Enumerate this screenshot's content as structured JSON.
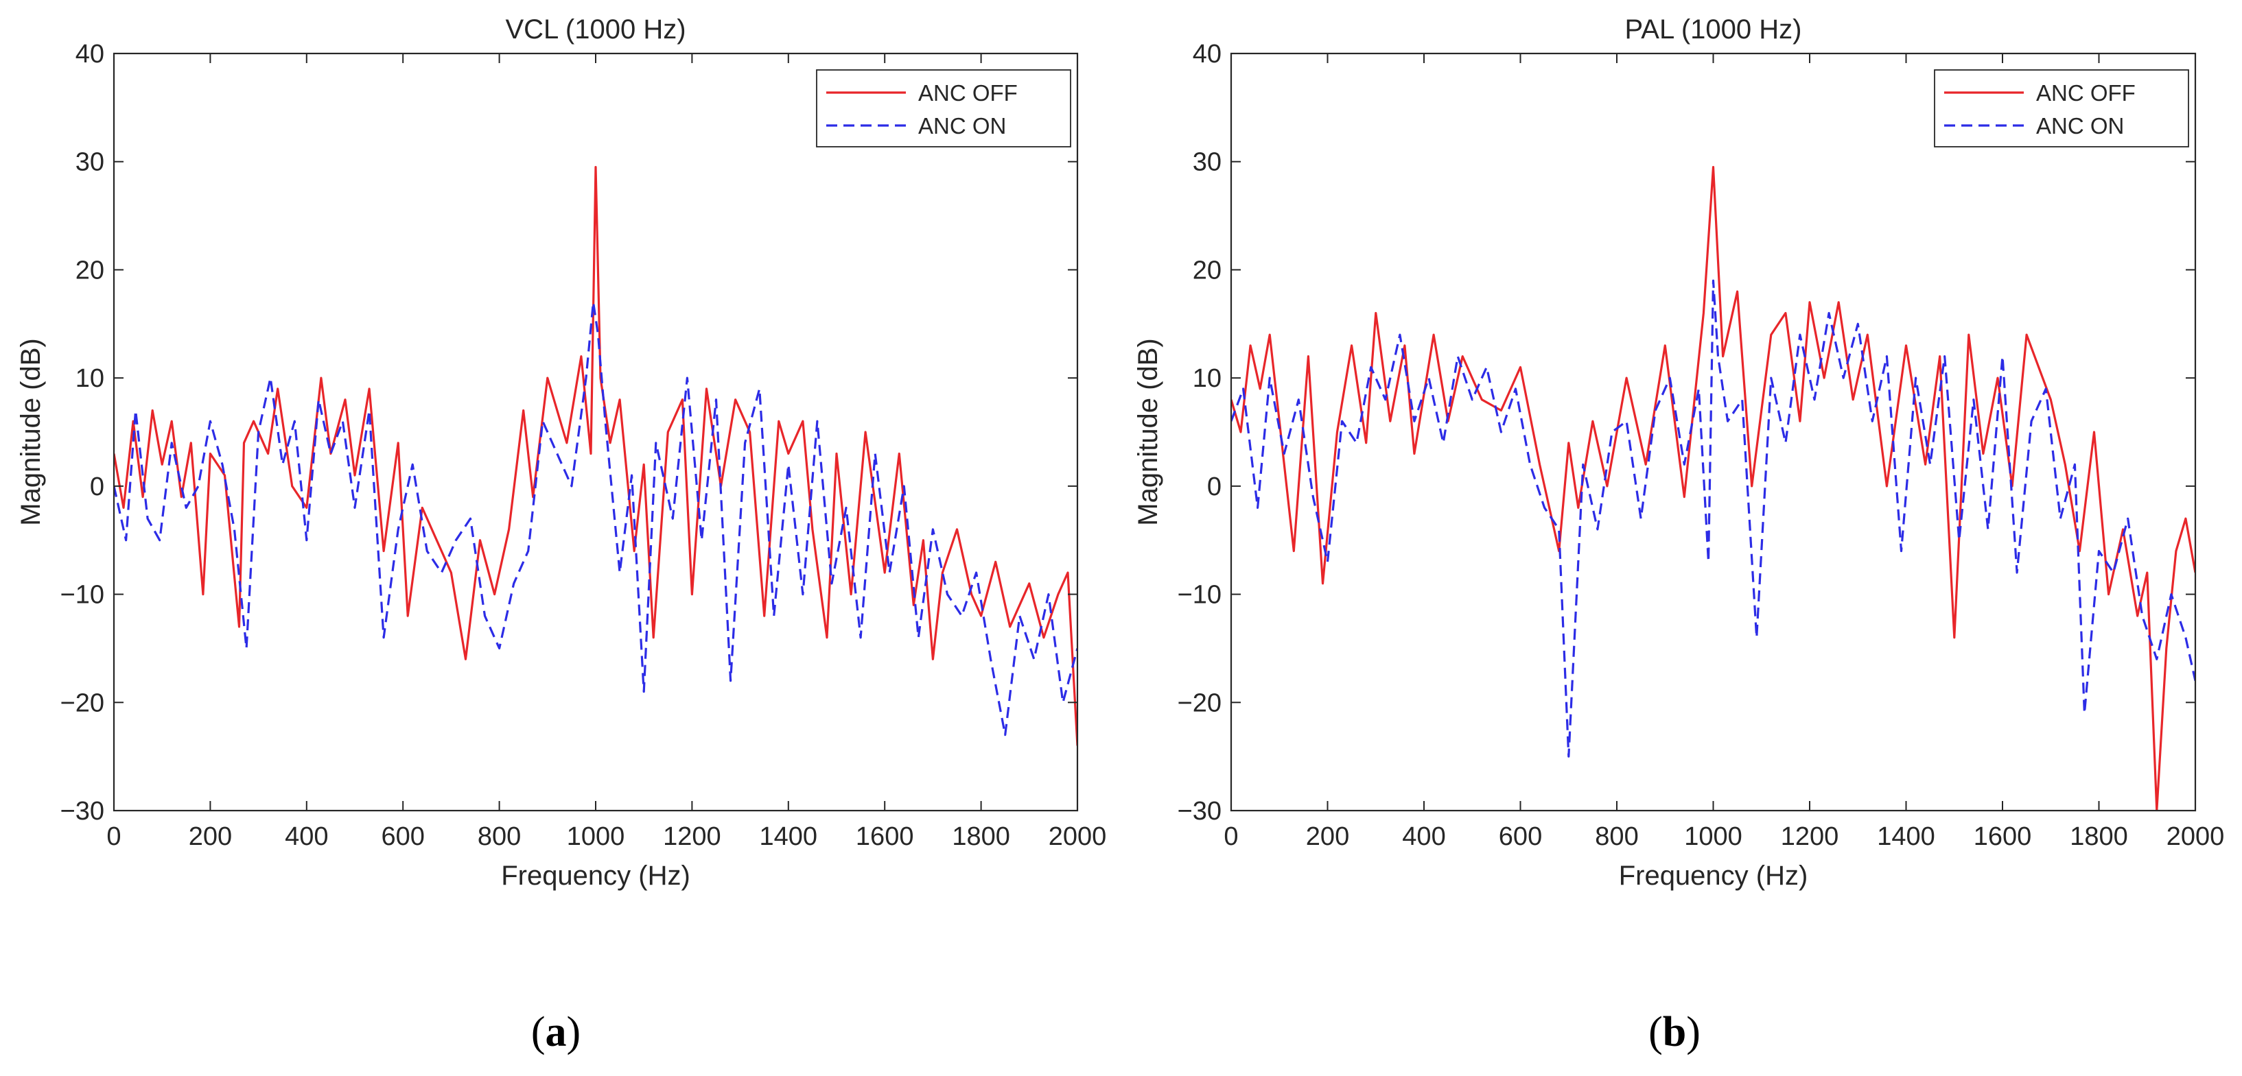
{
  "chart_data": [
    {
      "id": "a",
      "type": "line",
      "title": "VCL (1000 Hz)",
      "xlabel": "Frequency (Hz)",
      "ylabel": "Magnitude (dB)",
      "xlim": [
        0,
        2000
      ],
      "ylim": [
        -30,
        40
      ],
      "xticks": [
        0,
        200,
        400,
        600,
        800,
        1000,
        1200,
        1400,
        1600,
        1800,
        2000
      ],
      "yticks": [
        -30,
        -20,
        -10,
        0,
        10,
        20,
        30,
        40
      ],
      "xtick_labels": [
        "0",
        "200",
        "400",
        "600",
        "800",
        "1000",
        "1200",
        "1400",
        "1600",
        "1800",
        "2000"
      ],
      "ytick_labels": [
        "−30",
        "−20",
        "−10",
        "0",
        "10",
        "20",
        "30",
        "40"
      ],
      "grid": false,
      "legend_position": "top-right",
      "caption": {
        "open": "(",
        "letter": "a",
        "close": ")"
      },
      "series": [
        {
          "name": "ANC OFF",
          "color": "#e8262a",
          "style": "solid",
          "x": [
            0,
            20,
            40,
            60,
            80,
            100,
            120,
            140,
            160,
            185,
            200,
            230,
            260,
            270,
            290,
            320,
            340,
            370,
            400,
            430,
            450,
            480,
            500,
            530,
            560,
            590,
            610,
            640,
            680,
            700,
            730,
            760,
            790,
            820,
            850,
            870,
            900,
            940,
            970,
            990,
            1000,
            1010,
            1030,
            1050,
            1080,
            1100,
            1120,
            1150,
            1180,
            1200,
            1230,
            1260,
            1290,
            1320,
            1350,
            1380,
            1400,
            1430,
            1450,
            1480,
            1500,
            1530,
            1560,
            1600,
            1630,
            1660,
            1680,
            1700,
            1720,
            1750,
            1780,
            1800,
            1830,
            1860,
            1900,
            1930,
            1960,
            1980,
            2000
          ],
          "y": [
            3,
            -2,
            6,
            -1,
            7,
            2,
            6,
            -1,
            4,
            -10,
            3,
            1,
            -13,
            4,
            6,
            3,
            9,
            0,
            -2,
            10,
            3,
            8,
            1,
            9,
            -6,
            4,
            -12,
            -2,
            -6,
            -8,
            -16,
            -5,
            -10,
            -4,
            7,
            -1,
            10,
            4,
            12,
            3,
            29.5,
            10,
            4,
            8,
            -6,
            2,
            -14,
            5,
            8,
            -10,
            9,
            0,
            8,
            5,
            -12,
            6,
            3,
            6,
            -4,
            -14,
            3,
            -10,
            5,
            -8,
            3,
            -11,
            -5,
            -16,
            -8,
            -4,
            -10,
            -12,
            -7,
            -13,
            -9,
            -14,
            -10,
            -8,
            -24
          ]
        },
        {
          "name": "ANC ON",
          "color": "#2c2ce6",
          "style": "dashed",
          "x": [
            0,
            25,
            45,
            70,
            95,
            120,
            150,
            175,
            200,
            225,
            250,
            275,
            300,
            325,
            350,
            375,
            400,
            425,
            450,
            475,
            500,
            530,
            560,
            590,
            620,
            650,
            680,
            710,
            740,
            770,
            800,
            830,
            860,
            890,
            920,
            950,
            980,
            995,
            1005,
            1020,
            1050,
            1075,
            1100,
            1125,
            1160,
            1190,
            1220,
            1250,
            1280,
            1310,
            1340,
            1370,
            1400,
            1430,
            1460,
            1490,
            1520,
            1550,
            1580,
            1610,
            1640,
            1670,
            1700,
            1730,
            1760,
            1790,
            1820,
            1850,
            1880,
            1910,
            1940,
            1970,
            2000
          ],
          "y": [
            0,
            -5,
            7,
            -3,
            -5,
            4,
            -2,
            0,
            6,
            2,
            -4,
            -15,
            5,
            10,
            2,
            6,
            -5,
            8,
            3,
            6,
            -2,
            7,
            -14,
            -4,
            2,
            -6,
            -8,
            -5,
            -3,
            -12,
            -15,
            -9,
            -6,
            6,
            3,
            0,
            10,
            17,
            14,
            6,
            -8,
            1,
            -19,
            4,
            -3,
            10,
            -5,
            8,
            -18,
            4,
            9,
            -12,
            2,
            -10,
            6,
            -9,
            -2,
            -14,
            3,
            -8,
            0,
            -14,
            -4,
            -10,
            -12,
            -8,
            -16,
            -23,
            -12,
            -16,
            -10,
            -20,
            -15
          ]
        }
      ]
    },
    {
      "id": "b",
      "type": "line",
      "title": "PAL (1000 Hz)",
      "xlabel": "Frequency (Hz)",
      "ylabel": "Magnitude (dB)",
      "xlim": [
        0,
        2000
      ],
      "ylim": [
        -30,
        40
      ],
      "xticks": [
        0,
        200,
        400,
        600,
        800,
        1000,
        1200,
        1400,
        1600,
        1800,
        2000
      ],
      "yticks": [
        -30,
        -20,
        -10,
        0,
        10,
        20,
        30,
        40
      ],
      "xtick_labels": [
        "0",
        "200",
        "400",
        "600",
        "800",
        "1000",
        "1200",
        "1400",
        "1600",
        "1800",
        "2000"
      ],
      "ytick_labels": [
        "−30",
        "−20",
        "−10",
        "0",
        "10",
        "20",
        "30",
        "40"
      ],
      "grid": false,
      "legend_position": "top-right",
      "caption": {
        "open": "(",
        "letter": "b",
        "close": ")"
      },
      "series": [
        {
          "name": "ANC OFF",
          "color": "#e8262a",
          "style": "solid",
          "x": [
            0,
            20,
            40,
            60,
            80,
            100,
            130,
            160,
            190,
            220,
            250,
            280,
            300,
            330,
            360,
            380,
            420,
            450,
            480,
            520,
            560,
            600,
            640,
            680,
            700,
            720,
            750,
            780,
            820,
            860,
            900,
            940,
            980,
            1000,
            1020,
            1050,
            1080,
            1120,
            1150,
            1180,
            1200,
            1230,
            1260,
            1290,
            1320,
            1360,
            1400,
            1440,
            1470,
            1500,
            1530,
            1560,
            1590,
            1620,
            1650,
            1700,
            1730,
            1760,
            1790,
            1820,
            1850,
            1880,
            1900,
            1920,
            1940,
            1960,
            1980,
            2000
          ],
          "y": [
            8,
            5,
            13,
            9,
            14,
            6,
            -6,
            12,
            -9,
            5,
            13,
            4,
            16,
            6,
            13,
            3,
            14,
            6,
            12,
            8,
            7,
            11,
            2,
            -6,
            4,
            -2,
            6,
            0,
            10,
            2,
            13,
            -1,
            16,
            29.5,
            12,
            18,
            0,
            14,
            16,
            6,
            17,
            10,
            17,
            8,
            14,
            0,
            13,
            2,
            12,
            -14,
            14,
            3,
            10,
            0,
            14,
            8,
            2,
            -6,
            5,
            -10,
            -4,
            -12,
            -8,
            -30,
            -15,
            -6,
            -3,
            -8
          ]
        },
        {
          "name": "ANC ON",
          "color": "#2c2ce6",
          "style": "dashed",
          "x": [
            0,
            25,
            55,
            80,
            110,
            140,
            170,
            200,
            230,
            260,
            290,
            320,
            350,
            380,
            410,
            440,
            470,
            500,
            530,
            560,
            590,
            620,
            650,
            680,
            700,
            730,
            760,
            790,
            820,
            850,
            880,
            910,
            940,
            970,
            990,
            1000,
            1010,
            1030,
            1060,
            1090,
            1120,
            1150,
            1180,
            1210,
            1240,
            1270,
            1300,
            1330,
            1360,
            1390,
            1420,
            1450,
            1480,
            1510,
            1540,
            1570,
            1600,
            1630,
            1660,
            1690,
            1720,
            1750,
            1770,
            1800,
            1830,
            1860,
            1890,
            1920,
            1950,
            1980,
            2000
          ],
          "y": [
            6,
            9,
            -2,
            10,
            3,
            8,
            -1,
            -7,
            6,
            4,
            11,
            8,
            14,
            6,
            10,
            4,
            12,
            8,
            11,
            5,
            9,
            2,
            -2,
            -4,
            -25,
            2,
            -4,
            5,
            6,
            -3,
            7,
            10,
            2,
            9,
            -7,
            19,
            12,
            6,
            8,
            -14,
            10,
            4,
            14,
            8,
            16,
            10,
            15,
            6,
            12,
            -6,
            10,
            2,
            12,
            -5,
            8,
            -4,
            12,
            -8,
            6,
            9,
            -3,
            2,
            -21,
            -6,
            -8,
            -3,
            -12,
            -16,
            -10,
            -14,
            -18
          ]
        }
      ]
    }
  ]
}
